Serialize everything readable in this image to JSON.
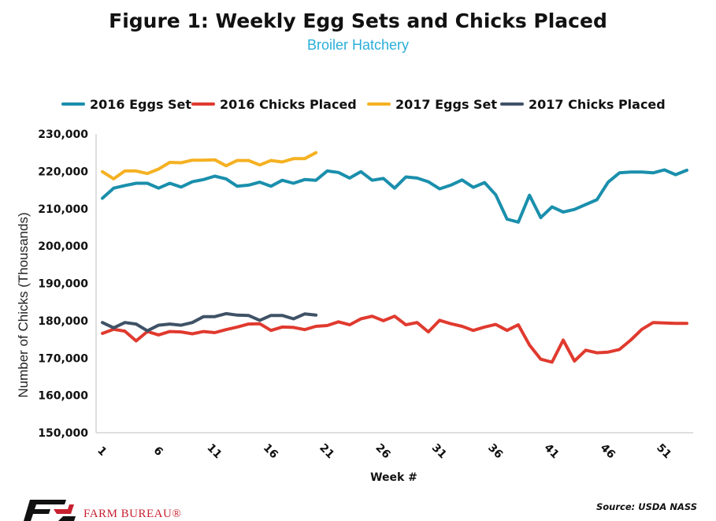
{
  "chart_data": {
    "type": "line",
    "title": "Figure 1: Weekly Egg Sets and Chicks Placed",
    "subtitle": "Broiler Hatchery",
    "xlabel": "Week #",
    "ylabel": "Number of Chicks (Thousands)",
    "ylim": [
      150000,
      230000
    ],
    "yticks": [
      150000,
      160000,
      170000,
      180000,
      190000,
      200000,
      210000,
      220000,
      230000
    ],
    "ytick_labels": [
      "150,000",
      "160,000",
      "170,000",
      "180,000",
      "190,000",
      "200,000",
      "210,000",
      "220,000",
      "230,000"
    ],
    "xlim": [
      1,
      53
    ],
    "xticks": [
      1,
      6,
      11,
      16,
      21,
      26,
      31,
      36,
      41,
      46,
      51
    ],
    "xtick_labels": [
      "1",
      "6",
      "11",
      "16",
      "21",
      "26",
      "31",
      "36",
      "41",
      "46",
      "51"
    ],
    "grid": false,
    "legend_position": "top",
    "series": [
      {
        "name": "2016 Eggs Set",
        "color": "#1a8fac",
        "values": [
          212800,
          215500,
          216200,
          216800,
          216800,
          215500,
          216800,
          215800,
          217200,
          217800,
          218700,
          218000,
          216000,
          216300,
          217100,
          216000,
          217600,
          216800,
          217800,
          217600,
          220100,
          219700,
          218200,
          219900,
          217600,
          218100,
          215500,
          218500,
          218200,
          217200,
          215300,
          216300,
          217700,
          215700,
          217000,
          213700,
          207200,
          206400,
          213600,
          207600,
          210500,
          209100,
          209800,
          211100,
          212400,
          217100,
          219600,
          219800,
          219800,
          219600,
          220400,
          219100,
          220300
        ]
      },
      {
        "name": "2016 Chicks Placed",
        "color": "#e03a2f",
        "values": [
          176600,
          177700,
          177200,
          174600,
          177100,
          176200,
          177100,
          177000,
          176500,
          177100,
          176800,
          177600,
          178300,
          179100,
          179200,
          177400,
          178300,
          178200,
          177600,
          178500,
          178700,
          179700,
          178900,
          180500,
          181200,
          180000,
          181200,
          178900,
          179500,
          177000,
          180100,
          179200,
          178500,
          177400,
          178300,
          179000,
          177400,
          178900,
          173500,
          169700,
          168900,
          174800,
          169200,
          172100,
          171400,
          171600,
          172300,
          174800,
          177700,
          179500,
          179400,
          179300,
          179300
        ]
      },
      {
        "name": "2017 Eggs Set",
        "color": "#f5b122",
        "values": [
          219900,
          218000,
          220100,
          220100,
          219400,
          220600,
          222400,
          222300,
          223000,
          223000,
          223100,
          221500,
          222900,
          222900,
          221700,
          222900,
          222500,
          223400,
          223400,
          225000
        ]
      },
      {
        "name": "2017 Chicks Placed",
        "color": "#3f5266",
        "values": [
          179500,
          178100,
          179500,
          179100,
          177300,
          178800,
          179100,
          178800,
          179500,
          181100,
          181100,
          181900,
          181500,
          181400,
          180100,
          181400,
          181400,
          180500,
          181800,
          181500
        ]
      }
    ],
    "source": "Source: USDA NASS",
    "logo_text": "FARM BUREAU®"
  }
}
